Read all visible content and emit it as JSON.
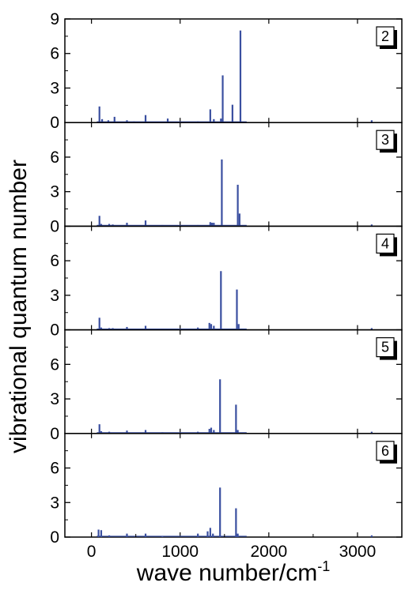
{
  "chart_data": {
    "type": "bar",
    "layout": "stacked-panels",
    "ylabel": "vibrational quantum number",
    "xlabel_base": "wave number/cm",
    "xlabel_sup": "-1",
    "xlim": [
      -300,
      3500
    ],
    "xticks": [
      0,
      1000,
      2000,
      3000
    ],
    "xtick_labels": [
      "0",
      "1000",
      "2000",
      "3000"
    ],
    "ylim": [
      0,
      9
    ],
    "yticks": [
      0,
      3,
      6,
      9
    ],
    "bar_color": "#3a4fa0",
    "panels": [
      {
        "label": "2",
        "ytick_labels": [
          "0",
          "3",
          "6",
          "9"
        ],
        "x": [
          90,
          120,
          190,
          260,
          400,
          480,
          610,
          860,
          1200,
          1340,
          1380,
          1460,
          1480,
          1590,
          1680,
          3160
        ],
        "values": [
          1.4,
          0.3,
          0.2,
          0.5,
          0.2,
          0.1,
          0.65,
          0.35,
          0.1,
          1.15,
          0.3,
          0.35,
          4.1,
          1.55,
          8.0,
          0.2
        ]
      },
      {
        "label": "3",
        "ytick_labels": [
          "0",
          "3",
          "6",
          ""
        ],
        "x": [
          90,
          110,
          200,
          240,
          400,
          610,
          800,
          1200,
          1340,
          1360,
          1380,
          1470,
          1650,
          1670,
          3160
        ],
        "values": [
          0.9,
          0.2,
          0.2,
          0.15,
          0.3,
          0.5,
          0.1,
          0.1,
          0.35,
          0.3,
          0.3,
          5.8,
          3.6,
          1.1,
          0.15
        ]
      },
      {
        "label": "4",
        "ytick_labels": [
          "0",
          "3",
          "6",
          ""
        ],
        "x": [
          90,
          110,
          200,
          240,
          400,
          610,
          800,
          1200,
          1330,
          1350,
          1380,
          1460,
          1640,
          1660,
          3160
        ],
        "values": [
          1.05,
          0.2,
          0.15,
          0.15,
          0.25,
          0.35,
          0.1,
          0.2,
          0.6,
          0.5,
          0.35,
          5.1,
          3.5,
          0.5,
          0.15
        ]
      },
      {
        "label": "5",
        "ytick_labels": [
          "0",
          "3",
          "6",
          ""
        ],
        "x": [
          90,
          110,
          200,
          400,
          610,
          800,
          1200,
          1330,
          1350,
          1380,
          1450,
          1630,
          1650,
          3160
        ],
        "values": [
          0.8,
          0.2,
          0.15,
          0.25,
          0.3,
          0.1,
          0.15,
          0.4,
          0.5,
          0.3,
          4.7,
          2.5,
          0.3,
          0.15
        ]
      },
      {
        "label": "6",
        "ytick_labels": [
          "0",
          "3",
          "6",
          ""
        ],
        "x": [
          80,
          110,
          200,
          400,
          610,
          800,
          1200,
          1310,
          1340,
          1370,
          1450,
          1630,
          1650,
          3160
        ],
        "values": [
          0.65,
          0.6,
          0.15,
          0.3,
          0.3,
          0.1,
          0.3,
          0.5,
          0.8,
          0.3,
          4.3,
          2.5,
          0.3,
          0.15
        ]
      }
    ]
  }
}
